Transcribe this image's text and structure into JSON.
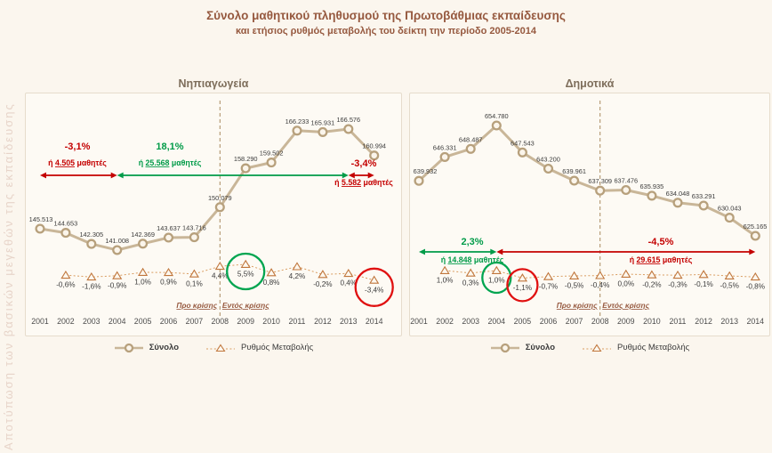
{
  "page": {
    "title_line1": "Σύνολο μαθητικού πληθυσμού της Πρωτοβάθμιας εκπαίδευσης",
    "title_line2": "και ετήσιος ρυθμός μεταβολής του δείκτη την περίοδο 2005-2014",
    "side_label": "Αποτύπωση των βασικών μεγεθών της εκπαίδευσης"
  },
  "legend": {
    "total": "Σύνολο",
    "rate": "Ρυθμός Μεταβολής"
  },
  "colors": {
    "background": "#FBF6EE",
    "panel": "#FDFAF4",
    "panel_border": "#E6DCCC",
    "title": "#96593F",
    "side_label": "#E7D4C9",
    "line": "#C9B698",
    "marker_ring": "#B7A07C",
    "marker_fill": "#FBF5EB",
    "rate_line": "#D99C5F",
    "rate_triangle": "#C0763C",
    "divider": "#A98A5F",
    "text_dark": "#3C3C3C",
    "red": "#C40000",
    "green": "#009B48"
  },
  "chart_data": [
    {
      "type": "line",
      "title": "Νηπιαγωγεία",
      "legend_position": "bottom",
      "x": [
        2001,
        2002,
        2003,
        2004,
        2005,
        2006,
        2007,
        2008,
        2009,
        2010,
        2011,
        2012,
        2013,
        2014
      ],
      "series": [
        {
          "name": "Σύνολο",
          "values": [
            145513,
            144653,
            142305,
            141008,
            142369,
            143637,
            143716,
            150079,
            158290,
            159502,
            166233,
            165931,
            166576,
            160994
          ],
          "labels": [
            "145.513",
            "144.653",
            "142.305",
            "141.008",
            "142.369",
            "143.637",
            "143.716",
            "150.079",
            "158.290",
            "159.502",
            "166.233",
            "165.931",
            "166.576",
            "160.994"
          ]
        },
        {
          "name": "Ρυθμός Μεταβολής",
          "values": [
            null,
            -0.6,
            -1.6,
            -0.9,
            1.0,
            0.9,
            0.1,
            4.4,
            5.5,
            0.8,
            4.2,
            -0.2,
            0.4,
            -3.4
          ],
          "labels": [
            "",
            "-0,6%",
            "-1,6%",
            "-0,9%",
            "1,0%",
            "0,9%",
            "0,1%",
            "4,4%",
            "5,5%",
            "0,8%",
            "4,2%",
            "-0,2%",
            "0,4%",
            "-3,4%"
          ]
        }
      ],
      "divider": {
        "year": 2008,
        "pre_label": "Προ κρίσης",
        "post_label": "Εντός κρίσης"
      },
      "annotations": [
        {
          "color": "red",
          "from_year": 2001,
          "to_year": 2004,
          "pct": "-3,1%",
          "students_prefix": "ή ",
          "students_value": "4.505",
          "students_suffix": " μαθητές"
        },
        {
          "color": "green",
          "from_year": 2004,
          "to_year": 2013,
          "pct": "18,1%",
          "students_prefix": "ή ",
          "students_value": "25.568",
          "students_suffix": " μαθητές"
        },
        {
          "color": "red",
          "from_year": 2013,
          "to_year": 2014,
          "pct": "-3,4%",
          "students_prefix": "ή ",
          "students_value": "5.582",
          "students_suffix": " μαθητές"
        }
      ],
      "highlight_circles": [
        {
          "year": 2009,
          "color": "green"
        },
        {
          "year": 2014,
          "color": "red"
        }
      ]
    },
    {
      "type": "line",
      "title": "Δημοτικά",
      "legend_position": "bottom",
      "x": [
        2001,
        2002,
        2003,
        2004,
        2005,
        2006,
        2007,
        2008,
        2009,
        2010,
        2011,
        2012,
        2013,
        2014
      ],
      "series": [
        {
          "name": "Σύνολο",
          "values": [
            639932,
            646331,
            648487,
            654780,
            647543,
            643200,
            639961,
            637309,
            637476,
            635935,
            634048,
            633291,
            630043,
            625165
          ],
          "labels": [
            "639.932",
            "646.331",
            "648.487",
            "654.780",
            "647.543",
            "643.200",
            "639.961",
            "637.309",
            "637.476",
            "635.935",
            "634.048",
            "633.291",
            "630.043",
            "625.165"
          ]
        },
        {
          "name": "Ρυθμός Μεταβολής",
          "values": [
            null,
            1.0,
            0.3,
            1.0,
            -1.1,
            -0.7,
            -0.5,
            -0.4,
            0.0,
            -0.2,
            -0.3,
            -0.1,
            -0.5,
            -0.8
          ],
          "labels": [
            "",
            "1,0%",
            "0,3%",
            "1,0%",
            "-1,1%",
            "-0,7%",
            "-0,5%",
            "-0,4%",
            "0,0%",
            "-0,2%",
            "-0,3%",
            "-0,1%",
            "-0,5%",
            "-0,8%"
          ]
        }
      ],
      "divider": {
        "year": 2008,
        "pre_label": "Προ κρίσης",
        "post_label": "Εντός κρίσης"
      },
      "annotations": [
        {
          "color": "green",
          "from_year": 2001,
          "to_year": 2004,
          "pct": "2,3%",
          "students_prefix": "ή ",
          "students_value": "14.848",
          "students_suffix": " μαθητές"
        },
        {
          "color": "red",
          "from_year": 2004,
          "to_year": 2014,
          "pct": "-4,5%",
          "students_prefix": "ή ",
          "students_value": "29.615",
          "students_suffix": " μαθητές"
        }
      ],
      "highlight_circles": [
        {
          "year": 2004,
          "color": "green"
        },
        {
          "year": 2005,
          "color": "red"
        }
      ]
    }
  ]
}
